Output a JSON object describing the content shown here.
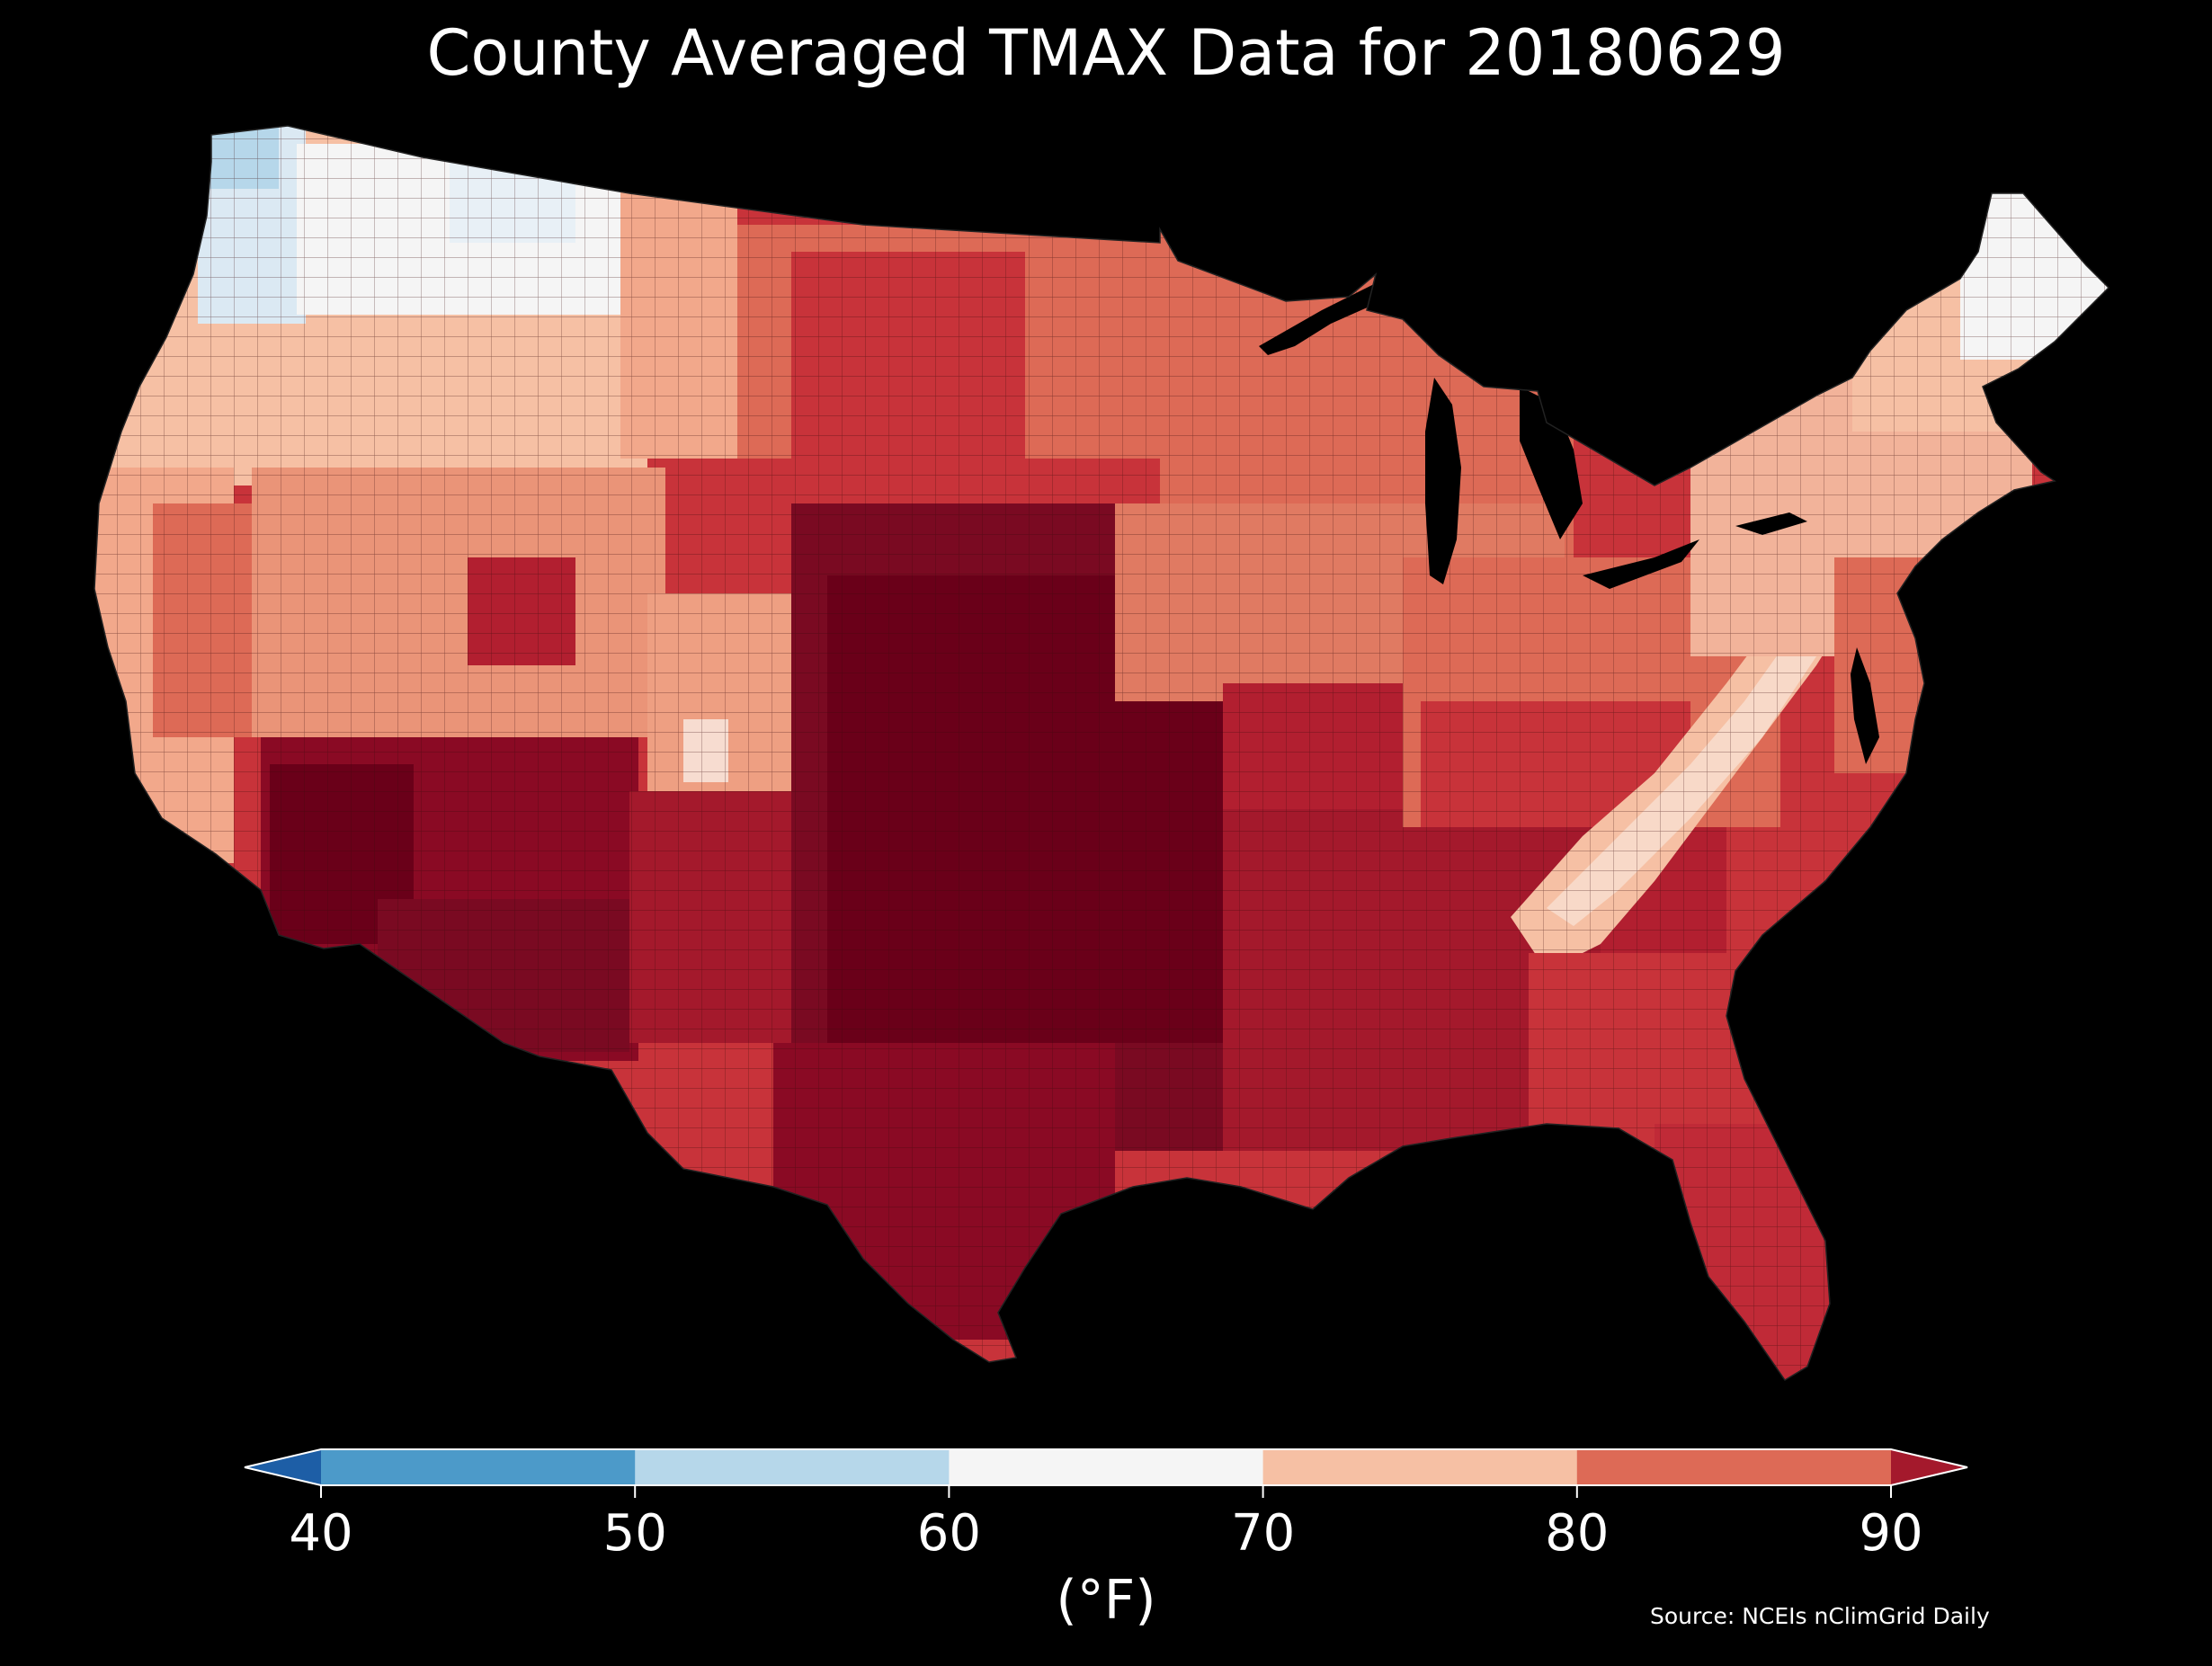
{
  "title": "County Averaged TMAX Data for 20180629",
  "source": "Source: NCEIs nClimGrid Daily",
  "colorbar": {
    "label": "(°F)",
    "ticks": [
      "40",
      "50",
      "60",
      "70",
      "80",
      "90"
    ],
    "bins": [
      {
        "range": "<40",
        "color": "#1d5ea6"
      },
      {
        "range": "40-50",
        "color": "#4c9ac9"
      },
      {
        "range": "50-60",
        "color": "#b6d7ea"
      },
      {
        "range": "60-70",
        "color": "#f5f5f5"
      },
      {
        "range": "70-80",
        "color": "#f6c0a4"
      },
      {
        "range": "80-90",
        "color": "#dd6a56"
      },
      {
        "range": ">90",
        "color": "#a4192c"
      }
    ],
    "extend": "both"
  },
  "map": {
    "region": "Contiguous United States",
    "units": "county",
    "variable": "TMAX",
    "date": "20180629",
    "region_colors": {
      "pacific_northwest_coast": "#b6d7ea",
      "northern_rockies": "#f5f5f5",
      "great_basin": "#f6c0a4",
      "california_central": "#dd6a56",
      "desert_southwest": "#6a0019",
      "southern_plains": "#7a0a22",
      "upper_midwest": "#dd6a56",
      "ohio_valley": "#c8333a",
      "appalachians": "#f6c0a4",
      "northeast": "#f2b39a",
      "maine": "#f5f5f5",
      "southeast": "#c02a37",
      "florida": "#c02a37"
    },
    "lake_color": "#000000"
  }
}
